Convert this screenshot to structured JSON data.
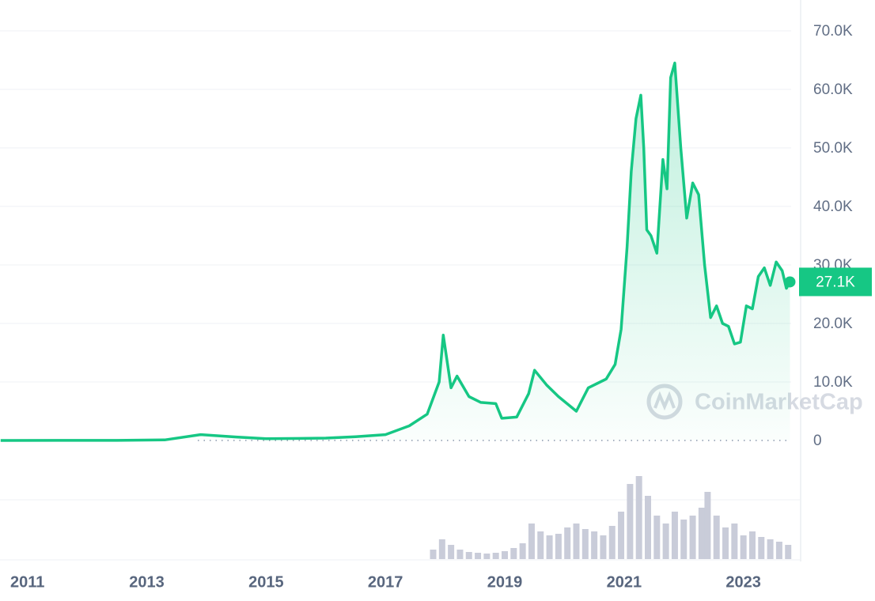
{
  "chart_data": {
    "type": "line",
    "x": [
      2010.55,
      2011.5,
      2012.5,
      2013.3,
      2013.9,
      2014.5,
      2015.0,
      2016.0,
      2016.5,
      2017.0,
      2017.4,
      2017.7,
      2017.9,
      2017.97,
      2018.1,
      2018.2,
      2018.4,
      2018.6,
      2018.85,
      2018.95,
      2019.2,
      2019.4,
      2019.5,
      2019.7,
      2019.9,
      2020.2,
      2020.4,
      2020.7,
      2020.85,
      2020.95,
      2021.05,
      2021.12,
      2021.2,
      2021.28,
      2021.33,
      2021.38,
      2021.45,
      2021.55,
      2021.6,
      2021.65,
      2021.72,
      2021.78,
      2021.85,
      2021.95,
      2022.05,
      2022.15,
      2022.25,
      2022.35,
      2022.45,
      2022.55,
      2022.65,
      2022.75,
      2022.85,
      2022.95,
      2023.05,
      2023.15,
      2023.25,
      2023.35,
      2023.45,
      2023.55,
      2023.65,
      2023.72,
      2023.78
    ],
    "series": [
      {
        "color": "#16c784",
        "values": [
          0.1,
          15,
          10,
          100,
          1000,
          600,
          300,
          400,
          650,
          1000,
          2500,
          4500,
          10000,
          18000,
          9000,
          11000,
          7500,
          6500,
          6300,
          3800,
          4000,
          8000,
          12000,
          9500,
          7500,
          5000,
          9000,
          10500,
          13000,
          19000,
          33000,
          46000,
          55000,
          59000,
          50000,
          36000,
          35000,
          32000,
          40000,
          48000,
          43000,
          62000,
          64500,
          50000,
          38000,
          44000,
          42000,
          30000,
          21000,
          23000,
          20000,
          19500,
          16500,
          16800,
          23000,
          22500,
          28000,
          29500,
          26500,
          30500,
          29000,
          26000,
          27100
        ]
      }
    ],
    "xlim": [
      2010.54,
      2023.8
    ],
    "xticks": [
      2011,
      2013,
      2015,
      2017,
      2019,
      2021,
      2023
    ],
    "ylim": [
      0,
      75000
    ],
    "yticks": [
      0,
      {
        "value": 10000,
        "label": "10.0K"
      },
      {
        "value": 20000,
        "label": "20.0K"
      },
      {
        "value": 30000,
        "label": "30.0K"
      },
      {
        "value": 40000,
        "label": "40.0K"
      },
      {
        "value": 50000,
        "label": "50.0K"
      },
      {
        "value": 60000,
        "label": "60.0K"
      },
      {
        "value": 70000,
        "label": "70.0K"
      }
    ],
    "grid": true,
    "last_price": {
      "value": 27100,
      "label": "27.1K"
    },
    "watermark": "CoinMarketCap",
    "volume": {
      "color": "#c9ccd9",
      "ylim": [
        0,
        110
      ],
      "x": [
        2017.8,
        2017.95,
        2018.1,
        2018.25,
        2018.4,
        2018.55,
        2018.7,
        2018.85,
        2019.0,
        2019.15,
        2019.3,
        2019.45,
        2019.6,
        2019.75,
        2019.9,
        2020.05,
        2020.2,
        2020.35,
        2020.5,
        2020.65,
        2020.8,
        2020.95,
        2021.1,
        2021.25,
        2021.4,
        2021.55,
        2021.7,
        2021.85,
        2022.0,
        2022.15,
        2022.3,
        2022.4,
        2022.55,
        2022.7,
        2022.85,
        2023.0,
        2023.15,
        2023.3,
        2023.45,
        2023.6,
        2023.75
      ],
      "values": [
        12,
        25,
        18,
        12,
        9,
        8,
        7,
        8,
        10,
        14,
        20,
        45,
        35,
        30,
        32,
        40,
        45,
        38,
        35,
        30,
        42,
        60,
        95,
        105,
        80,
        55,
        45,
        60,
        50,
        55,
        65,
        85,
        55,
        40,
        45,
        30,
        35,
        28,
        25,
        22,
        18
      ]
    }
  }
}
